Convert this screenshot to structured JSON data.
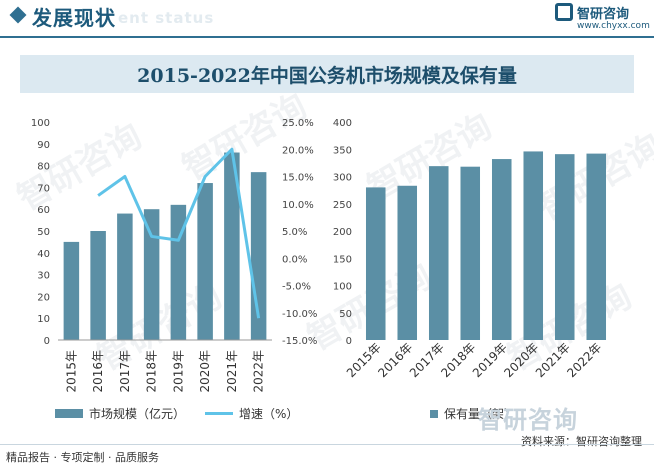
{
  "header": {
    "title": "发展现状",
    "subtitle": "ent status",
    "brand_name": "智研咨询",
    "brand_url": "www.chyxx.com"
  },
  "title": "2015-2022年中国公务机市场规模及保有量",
  "watermark": "智研咨询",
  "bottom_brand": "智研咨询",
  "footer": {
    "left": "精品报告 · 专项定制 · 品质服务",
    "right": "资料来源：智研咨询整理"
  },
  "colors": {
    "bar": "#5b8fa5",
    "line": "#5fc3e8",
    "accent": "#1d5a7c"
  },
  "chart_data": [
    {
      "type": "bar",
      "title": "",
      "categories": [
        "2015年",
        "2016年",
        "2017年",
        "2018年",
        "2019年",
        "2020年",
        "2021年",
        "2022年"
      ],
      "series": [
        {
          "name": "市场规模（亿元）",
          "type": "bar",
          "axis": "left",
          "values": [
            45,
            50,
            58,
            60,
            62,
            72,
            86,
            77
          ]
        },
        {
          "name": "增速（%）",
          "type": "line",
          "axis": "right",
          "values": [
            null,
            11.5,
            15.0,
            4.0,
            3.3,
            15.0,
            20.0,
            -11.0
          ]
        }
      ],
      "left_axis": {
        "min": 0,
        "max": 100,
        "step": 10,
        "ticks": [
          "0",
          "10",
          "20",
          "30",
          "40",
          "50",
          "60",
          "70",
          "80",
          "90",
          "100"
        ]
      },
      "right_axis": {
        "min": -15,
        "max": 25,
        "step": 5,
        "ticks": [
          "-15.0%",
          "-10.0%",
          "-5.0%",
          "0.0%",
          "5.0%",
          "10.0%",
          "15.0%",
          "20.0%",
          "25.0%"
        ]
      },
      "legend": [
        "市场规模（亿元）",
        "增速（%）"
      ]
    },
    {
      "type": "bar",
      "title": "",
      "categories": [
        "2015年",
        "2016年",
        "2017年",
        "2018年",
        "2019年",
        "2020年",
        "2021年",
        "2022年"
      ],
      "series": [
        {
          "name": "保有量（架）",
          "values": [
            280,
            283,
            319,
            318,
            332,
            346,
            341,
            342
          ]
        }
      ],
      "axis": {
        "min": 0,
        "max": 400,
        "step": 50,
        "ticks": [
          "0",
          "50",
          "100",
          "150",
          "200",
          "250",
          "300",
          "350",
          "400"
        ]
      },
      "legend": [
        "保有量（架）"
      ]
    }
  ]
}
